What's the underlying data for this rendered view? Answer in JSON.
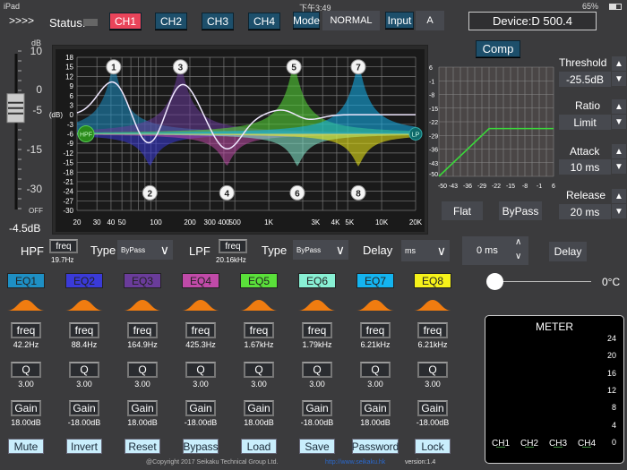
{
  "status_bar": {
    "device": "iPad",
    "time": "下午3:49",
    "battery": "65%"
  },
  "header": {
    "menu": ">>>>",
    "status_label": "Status:",
    "channels": [
      "CH1",
      "CH2",
      "CH3",
      "CH4"
    ],
    "active_channel": "CH1",
    "mode_label": "Mode",
    "mode_value": "NORMAL",
    "input_label": "Input",
    "input_value": "A",
    "device": "Device:D 500.4"
  },
  "fader": {
    "unit": "dB",
    "ticks": [
      "10",
      "0",
      "-5",
      "-15",
      "-30",
      "OFF"
    ],
    "value_db": -4.5,
    "value_label": "-4.5dB"
  },
  "eq_graph": {
    "y_unit": "(dB)",
    "y_ticks": [
      "18",
      "15",
      "12",
      "9",
      "6",
      "3",
      "0",
      "-3",
      "-6",
      "-9",
      "-12",
      "-15",
      "-18",
      "-21",
      "-24",
      "-27",
      "-30"
    ],
    "x_ticks": [
      "20",
      "30",
      "40",
      "50",
      "100",
      "200",
      "300",
      "400",
      "500",
      "1K",
      "3K",
      "4K",
      "5K",
      "10K",
      "20K"
    ],
    "hpf_marker": "HPF",
    "lpf_marker": "LP"
  },
  "bands": [
    {
      "name": "EQ1",
      "node": "1",
      "freq": "42.2Hz",
      "freq_hz": 42.2,
      "q": "3.00",
      "gain": "18.00dB",
      "gain_db": 18,
      "color": "#1e8fc4"
    },
    {
      "name": "EQ2",
      "node": "2",
      "freq": "88.4Hz",
      "freq_hz": 88.4,
      "q": "3.00",
      "gain": "-18.00dB",
      "gain_db": -18,
      "color": "#3a3ad8"
    },
    {
      "name": "EQ3",
      "node": "3",
      "freq": "164.9Hz",
      "freq_hz": 164.9,
      "q": "3.00",
      "gain": "18.00dB",
      "gain_db": 18,
      "color": "#6a3c9a"
    },
    {
      "name": "EQ4",
      "node": "4",
      "freq": "425.3Hz",
      "freq_hz": 425.3,
      "q": "3.00",
      "gain": "-18.00dB",
      "gain_db": -18,
      "color": "#c04aa8"
    },
    {
      "name": "EQ5",
      "node": "5",
      "freq": "1.67kHz",
      "freq_hz": 1670,
      "q": "3.00",
      "gain": "18.00dB",
      "gain_db": 18,
      "color": "#5ae03a"
    },
    {
      "name": "EQ6",
      "node": "6",
      "freq": "1.79kHz",
      "freq_hz": 1790,
      "q": "3.00",
      "gain": "-18.00dB",
      "gain_db": -18,
      "color": "#88f0d4"
    },
    {
      "name": "EQ7",
      "node": "7",
      "freq": "6.21kHz",
      "freq_hz": 6210,
      "q": "3.00",
      "gain": "18.00dB",
      "gain_db": 18,
      "color": "#14b4f0"
    },
    {
      "name": "EQ8",
      "node": "8",
      "freq": "6.21kHz",
      "freq_hz": 6210,
      "q": "3.00",
      "gain": "-18.00dB",
      "gain_db": -18,
      "color": "#f6f21a"
    }
  ],
  "param_labels": {
    "freq": "freq",
    "q": "Q",
    "gain": "Gain"
  },
  "filters": {
    "hpf_label": "HPF",
    "hpf_freq": "19.7Hz",
    "lpf_label": "LPF",
    "lpf_freq": "20.16kHz",
    "type_label": "Type",
    "hpf_type": "ByPass",
    "lpf_type": "ByPass",
    "freq_btn": "freq",
    "delay_label": "Delay",
    "delay_unit": "ms",
    "delay_value": "0 ms",
    "delay_btn": "Delay"
  },
  "compressor": {
    "comp_btn": "Comp",
    "ticks": [
      "6",
      "-1",
      "-8",
      "-15",
      "-22",
      "-29",
      "-36",
      "-43",
      "-50"
    ],
    "x_ticks": [
      "-50",
      "-43",
      "-36",
      "-29",
      "-22",
      "-15",
      "-8",
      "-1",
      "6"
    ],
    "threshold_db": -25.5,
    "threshold_label": "Threshold",
    "threshold": "-25.5dB",
    "ratio_label": "Ratio",
    "ratio": "Limit",
    "attack_label": "Attack",
    "attack": "10 ms",
    "release_label": "Release",
    "release": "20 ms",
    "flat_btn": "Flat",
    "bypass_btn": "ByPass"
  },
  "temperature": {
    "value": "0°C",
    "slider_fraction": 0
  },
  "meter": {
    "title": "METER",
    "scale": [
      "24",
      "20",
      "16",
      "12",
      "8",
      "4",
      "0"
    ],
    "channels": [
      "CH1",
      "CH2",
      "CH3",
      "CH4"
    ]
  },
  "actions": [
    "Mute",
    "Invert",
    "Reset",
    "Bypass",
    "Load",
    "Save",
    "Password",
    "Lock"
  ],
  "footer": {
    "copyright": "@Copyright 2017 Seikaku Technical Group Ltd.",
    "url": "http://www.seikaku.hk",
    "version": "version:1.4"
  }
}
